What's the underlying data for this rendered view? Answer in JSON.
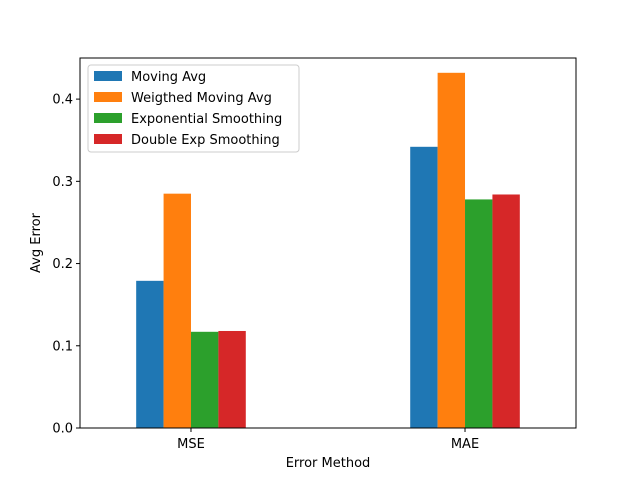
{
  "chart_data": {
    "type": "bar",
    "title": "",
    "xlabel": "Error Method",
    "ylabel": "Avg Error",
    "categories": [
      "MSE",
      "MAE"
    ],
    "ylim": [
      0,
      0.45
    ],
    "yticks": [
      0.0,
      0.1,
      0.2,
      0.3,
      0.4
    ],
    "ytick_labels": [
      "0.0",
      "0.1",
      "0.2",
      "0.3",
      "0.4"
    ],
    "grid": false,
    "legend_position": "upper-left",
    "series": [
      {
        "name": "Moving Avg",
        "color": "#1f77b4",
        "values": [
          0.179,
          0.342
        ]
      },
      {
        "name": "Weigthed Moving Avg",
        "color": "#ff7f0e",
        "values": [
          0.285,
          0.432
        ]
      },
      {
        "name": "Exponential Smoothing",
        "color": "#2ca02c",
        "values": [
          0.117,
          0.278
        ]
      },
      {
        "name": "Double Exp Smoothing",
        "color": "#d62728",
        "values": [
          0.118,
          0.284
        ]
      }
    ]
  }
}
